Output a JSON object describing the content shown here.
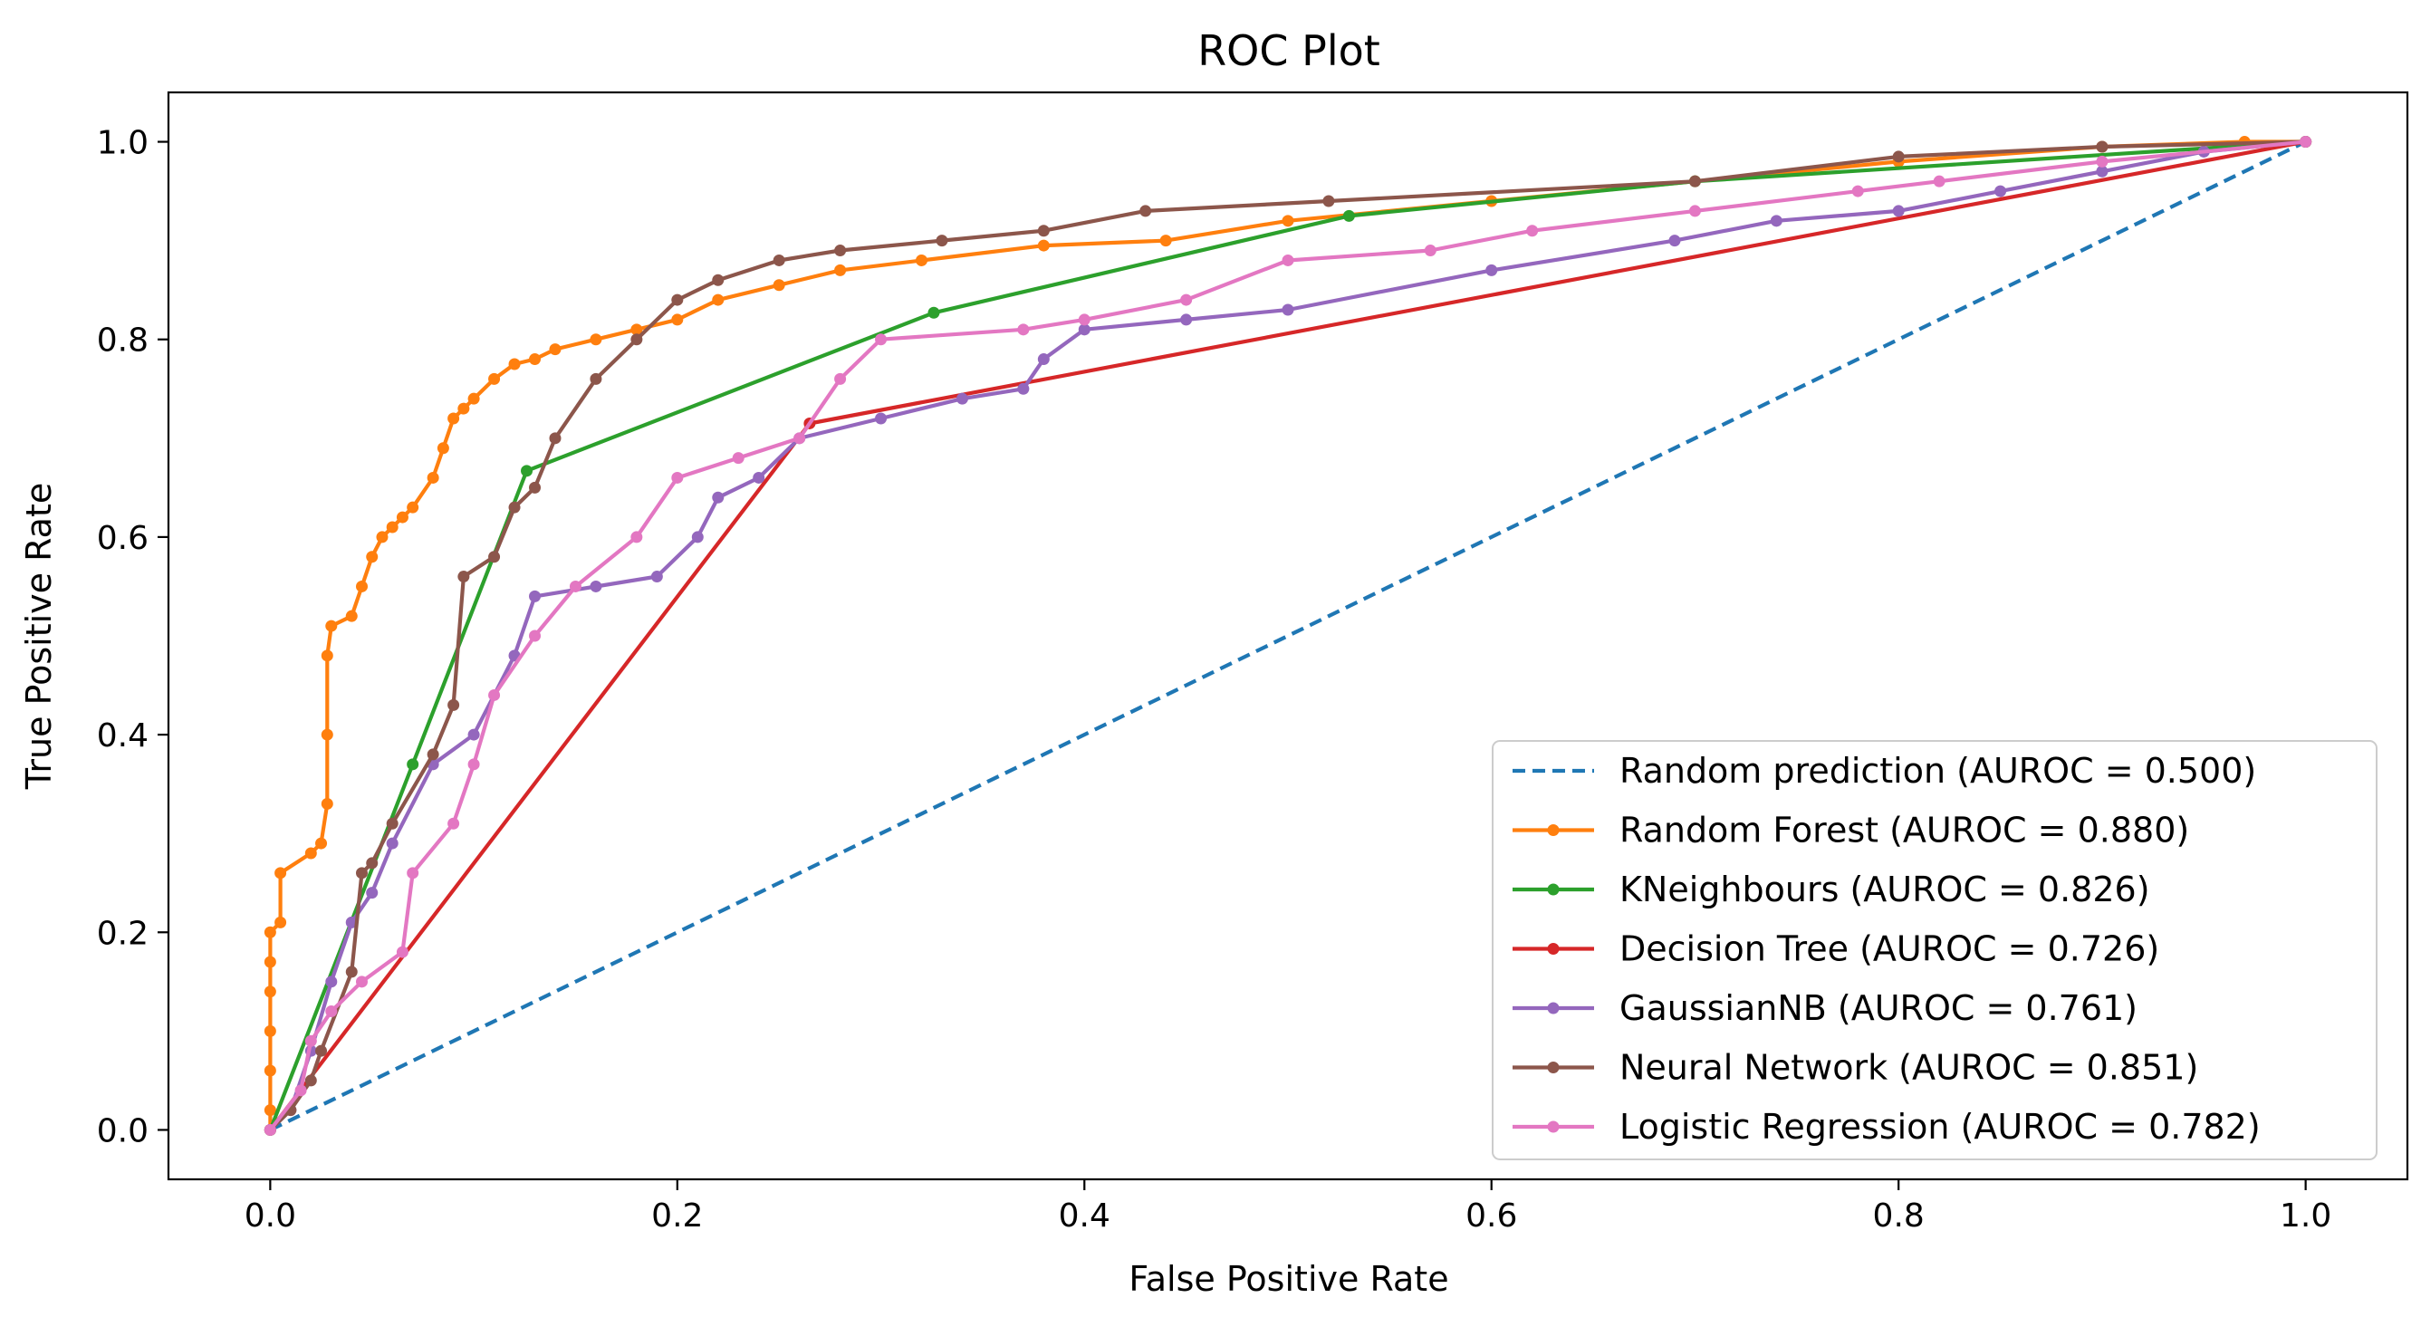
{
  "chart_data": {
    "type": "line",
    "title": "ROC Plot",
    "xlabel": "False Positive Rate",
    "ylabel": "True Positive Rate",
    "xlim": [
      -0.05,
      1.05
    ],
    "ylim": [
      -0.05,
      1.05
    ],
    "xticks": [
      0.0,
      0.2,
      0.4,
      0.6,
      0.8,
      1.0
    ],
    "yticks": [
      0.0,
      0.2,
      0.4,
      0.6,
      0.8,
      1.0
    ],
    "xtick_labels": [
      "0.0",
      "0.2",
      "0.4",
      "0.6",
      "0.8",
      "1.0"
    ],
    "ytick_labels": [
      "0.0",
      "0.2",
      "0.4",
      "0.6",
      "0.8",
      "1.0"
    ],
    "grid": false,
    "legend_position": "lower-right",
    "series": [
      {
        "name": "Random prediction (AUROC = 0.500)",
        "color": "#1f77b4",
        "dashed": true,
        "markers": false,
        "points": [
          [
            0,
            0
          ],
          [
            1,
            1
          ]
        ]
      },
      {
        "name": "Random Forest (AUROC = 0.880)",
        "color": "#ff7f0e",
        "dashed": false,
        "markers": true,
        "points": [
          [
            0,
            0
          ],
          [
            0,
            0.02
          ],
          [
            0,
            0.06
          ],
          [
            0,
            0.1
          ],
          [
            0,
            0.14
          ],
          [
            0,
            0.17
          ],
          [
            0,
            0.2
          ],
          [
            0.005,
            0.21
          ],
          [
            0.005,
            0.26
          ],
          [
            0.02,
            0.28
          ],
          [
            0.025,
            0.29
          ],
          [
            0.028,
            0.33
          ],
          [
            0.028,
            0.4
          ],
          [
            0.028,
            0.48
          ],
          [
            0.03,
            0.51
          ],
          [
            0.04,
            0.52
          ],
          [
            0.045,
            0.55
          ],
          [
            0.05,
            0.58
          ],
          [
            0.055,
            0.6
          ],
          [
            0.06,
            0.61
          ],
          [
            0.065,
            0.62
          ],
          [
            0.07,
            0.63
          ],
          [
            0.08,
            0.66
          ],
          [
            0.085,
            0.69
          ],
          [
            0.09,
            0.72
          ],
          [
            0.095,
            0.73
          ],
          [
            0.1,
            0.74
          ],
          [
            0.11,
            0.76
          ],
          [
            0.12,
            0.775
          ],
          [
            0.13,
            0.78
          ],
          [
            0.14,
            0.79
          ],
          [
            0.16,
            0.8
          ],
          [
            0.18,
            0.81
          ],
          [
            0.2,
            0.82
          ],
          [
            0.22,
            0.84
          ],
          [
            0.25,
            0.855
          ],
          [
            0.28,
            0.87
          ],
          [
            0.32,
            0.88
          ],
          [
            0.38,
            0.895
          ],
          [
            0.44,
            0.9
          ],
          [
            0.5,
            0.92
          ],
          [
            0.6,
            0.94
          ],
          [
            0.7,
            0.96
          ],
          [
            0.8,
            0.98
          ],
          [
            0.9,
            0.995
          ],
          [
            0.97,
            1.0
          ],
          [
            1,
            1
          ]
        ]
      },
      {
        "name": "KNeighbours (AUROC = 0.826)",
        "color": "#2ca02c",
        "dashed": false,
        "markers": true,
        "points": [
          [
            0,
            0
          ],
          [
            0.07,
            0.37
          ],
          [
            0.126,
            0.667
          ],
          [
            0.326,
            0.827
          ],
          [
            0.53,
            0.925
          ],
          [
            0.7,
            0.96
          ],
          [
            1,
            1
          ]
        ]
      },
      {
        "name": "Decision Tree (AUROC = 0.726)",
        "color": "#d62728",
        "dashed": false,
        "markers": true,
        "points": [
          [
            0,
            0
          ],
          [
            0.265,
            0.715
          ],
          [
            1,
            1
          ]
        ]
      },
      {
        "name": "GaussianNB (AUROC = 0.761)",
        "color": "#9467bd",
        "dashed": false,
        "markers": true,
        "points": [
          [
            0,
            0
          ],
          [
            0.01,
            0.02
          ],
          [
            0.02,
            0.08
          ],
          [
            0.03,
            0.15
          ],
          [
            0.04,
            0.21
          ],
          [
            0.05,
            0.24
          ],
          [
            0.06,
            0.29
          ],
          [
            0.08,
            0.37
          ],
          [
            0.1,
            0.4
          ],
          [
            0.12,
            0.48
          ],
          [
            0.13,
            0.54
          ],
          [
            0.16,
            0.55
          ],
          [
            0.19,
            0.56
          ],
          [
            0.21,
            0.6
          ],
          [
            0.22,
            0.64
          ],
          [
            0.24,
            0.66
          ],
          [
            0.26,
            0.7
          ],
          [
            0.3,
            0.72
          ],
          [
            0.34,
            0.74
          ],
          [
            0.37,
            0.75
          ],
          [
            0.38,
            0.78
          ],
          [
            0.4,
            0.81
          ],
          [
            0.45,
            0.82
          ],
          [
            0.5,
            0.83
          ],
          [
            0.6,
            0.87
          ],
          [
            0.69,
            0.9
          ],
          [
            0.74,
            0.92
          ],
          [
            0.8,
            0.93
          ],
          [
            0.85,
            0.95
          ],
          [
            0.9,
            0.97
          ],
          [
            0.95,
            0.99
          ],
          [
            1,
            1
          ]
        ]
      },
      {
        "name": "Neural Network (AUROC = 0.851)",
        "color": "#8c564b",
        "dashed": false,
        "markers": true,
        "points": [
          [
            0,
            0
          ],
          [
            0.01,
            0.02
          ],
          [
            0.02,
            0.05
          ],
          [
            0.025,
            0.08
          ],
          [
            0.04,
            0.16
          ],
          [
            0.045,
            0.26
          ],
          [
            0.05,
            0.27
          ],
          [
            0.06,
            0.31
          ],
          [
            0.08,
            0.38
          ],
          [
            0.09,
            0.43
          ],
          [
            0.095,
            0.56
          ],
          [
            0.11,
            0.58
          ],
          [
            0.12,
            0.63
          ],
          [
            0.13,
            0.65
          ],
          [
            0.14,
            0.7
          ],
          [
            0.16,
            0.76
          ],
          [
            0.18,
            0.8
          ],
          [
            0.2,
            0.84
          ],
          [
            0.22,
            0.86
          ],
          [
            0.25,
            0.88
          ],
          [
            0.28,
            0.89
          ],
          [
            0.33,
            0.9
          ],
          [
            0.38,
            0.91
          ],
          [
            0.43,
            0.93
          ],
          [
            0.52,
            0.94
          ],
          [
            0.7,
            0.96
          ],
          [
            0.8,
            0.985
          ],
          [
            0.9,
            0.995
          ],
          [
            1,
            1
          ]
        ]
      },
      {
        "name": "Logistic Regression (AUROC = 0.782)",
        "color": "#e377c2",
        "dashed": false,
        "markers": true,
        "points": [
          [
            0,
            0
          ],
          [
            0.015,
            0.04
          ],
          [
            0.02,
            0.09
          ],
          [
            0.03,
            0.12
          ],
          [
            0.045,
            0.15
          ],
          [
            0.065,
            0.18
          ],
          [
            0.07,
            0.26
          ],
          [
            0.09,
            0.31
          ],
          [
            0.1,
            0.37
          ],
          [
            0.11,
            0.44
          ],
          [
            0.13,
            0.5
          ],
          [
            0.15,
            0.55
          ],
          [
            0.18,
            0.6
          ],
          [
            0.2,
            0.66
          ],
          [
            0.23,
            0.68
          ],
          [
            0.26,
            0.7
          ],
          [
            0.28,
            0.76
          ],
          [
            0.3,
            0.8
          ],
          [
            0.37,
            0.81
          ],
          [
            0.4,
            0.82
          ],
          [
            0.45,
            0.84
          ],
          [
            0.5,
            0.88
          ],
          [
            0.57,
            0.89
          ],
          [
            0.62,
            0.91
          ],
          [
            0.7,
            0.93
          ],
          [
            0.78,
            0.95
          ],
          [
            0.82,
            0.96
          ],
          [
            0.9,
            0.98
          ],
          [
            1,
            1
          ]
        ]
      }
    ]
  }
}
